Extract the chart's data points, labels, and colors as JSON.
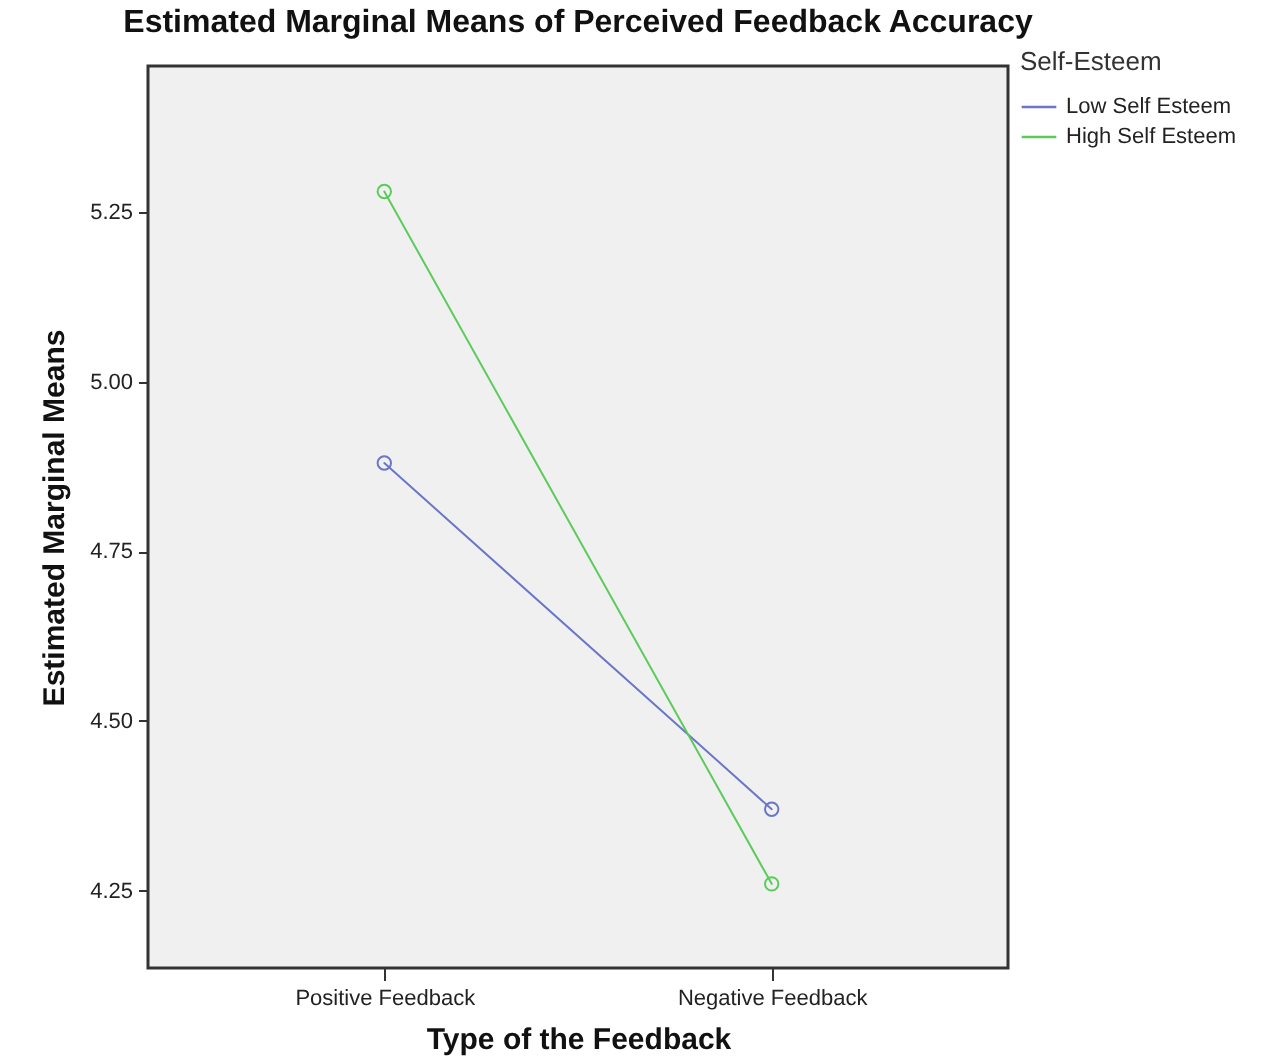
{
  "chart_data": {
    "type": "line",
    "title": "Estimated Marginal Means of Perceived Feedback Accuracy",
    "xlabel": "Type of the Feedback",
    "ylabel": "Estimated Marginal Means",
    "legend_title": "Self-Esteem",
    "categories": [
      "Positive Feedback",
      "Negative Feedback"
    ],
    "series": [
      {
        "name": "Low Self Esteem",
        "color": "#6a76c6",
        "values": [
          4.88,
          4.37
        ]
      },
      {
        "name": "High Self Esteem",
        "color": "#5ccb5c",
        "values": [
          5.28,
          4.26
        ]
      }
    ],
    "ylim": [
      4.136,
      5.465
    ],
    "yticks": [
      {
        "value": 4.25,
        "label": "4.25"
      },
      {
        "value": 4.5,
        "label": "4.50"
      },
      {
        "value": 4.75,
        "label": "4.75"
      },
      {
        "value": 5,
        "label": "5.00"
      },
      {
        "value": 5.25,
        "label": "5.25"
      }
    ],
    "grid": false,
    "legend": "top right",
    "marker": "circle",
    "line_style": "solid"
  }
}
